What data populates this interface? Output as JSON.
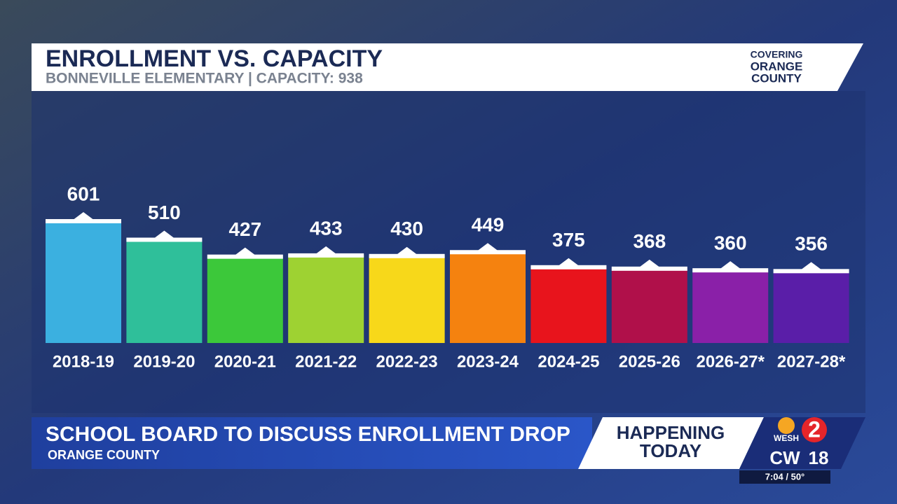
{
  "chart_data": {
    "type": "bar",
    "title": "ENROLLMENT VS. CAPACITY",
    "subtitle": "BONNEVILLE ELEMENTARY | CAPACITY: 938",
    "categories": [
      "2018-19",
      "2019-20",
      "2020-21",
      "2021-22",
      "2022-23",
      "2023-24",
      "2024-25",
      "2025-26",
      "2026-27*",
      "2027-28*"
    ],
    "values": [
      601,
      510,
      427,
      433,
      430,
      449,
      375,
      368,
      360,
      356
    ],
    "colors": [
      "#3bb0e0",
      "#2fbf9a",
      "#3cc83a",
      "#9ed232",
      "#f7d81a",
      "#f5820f",
      "#e8141c",
      "#b0104a",
      "#8a20a8",
      "#5a1ea8"
    ]
  },
  "badge": [
    "COVERING",
    "ORANGE",
    "COUNTY"
  ],
  "lower_third": {
    "headline": "SCHOOL BOARD TO DISCUSS ENROLLMENT DROP",
    "location": "ORANGE COUNTY",
    "tag": [
      "HAPPENING",
      "TODAY"
    ]
  },
  "logo": {
    "station": "WESH",
    "channel": "2",
    "network": "CW",
    "network_channel": "18"
  },
  "clock": "7:04 / 50°"
}
